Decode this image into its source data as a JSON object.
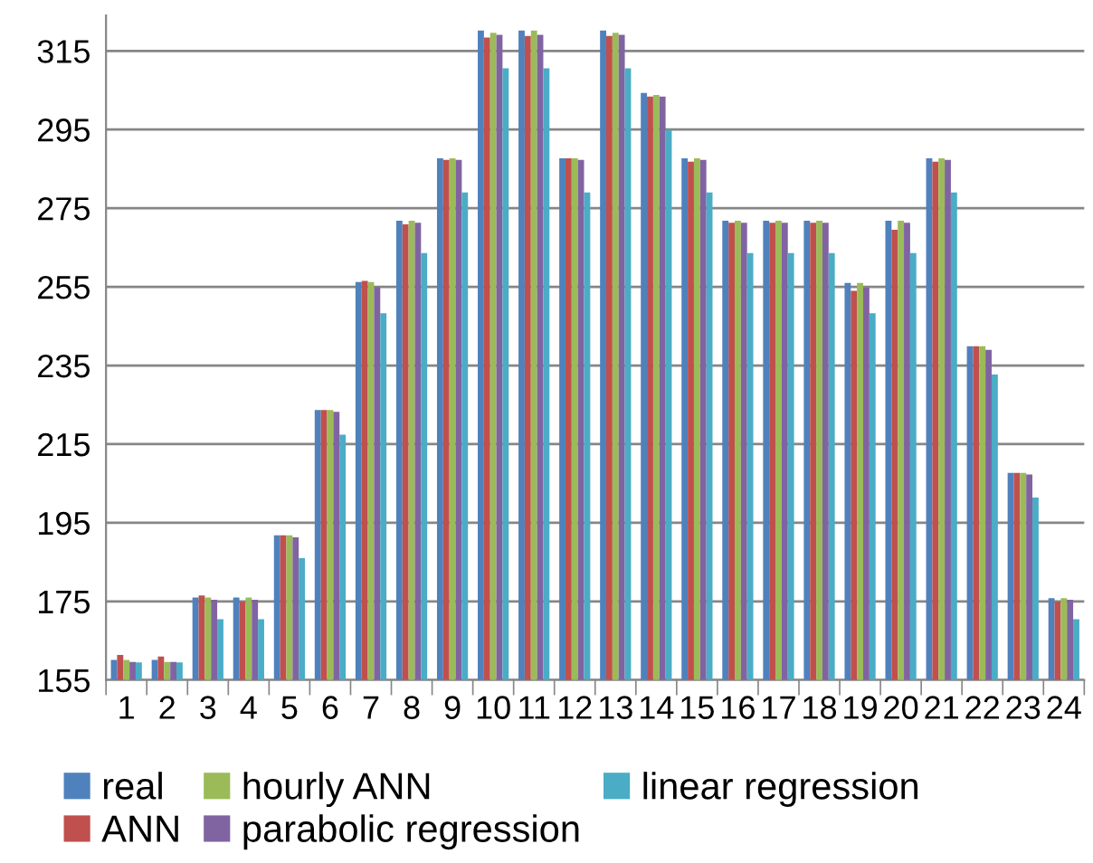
{
  "chart_data": {
    "type": "bar",
    "categories": [
      "1",
      "2",
      "3",
      "4",
      "5",
      "6",
      "7",
      "8",
      "9",
      "10",
      "11",
      "12",
      "13",
      "14",
      "15",
      "16",
      "17",
      "18",
      "19",
      "20",
      "21",
      "22",
      "23",
      "24"
    ],
    "series": [
      {
        "name": "real",
        "color": "#4f81bd",
        "values": [
          160.1,
          160.1,
          176,
          176,
          191.8,
          223.7,
          256.2,
          271.8,
          287.7,
          320.2,
          320.2,
          287.7,
          320.2,
          304.3,
          287.7,
          271.8,
          271.8,
          271.8,
          256,
          271.8,
          287.7,
          239.9,
          207.7,
          175.8
        ]
      },
      {
        "name": "ANN",
        "color": "#c0504d",
        "values": [
          161.4,
          161,
          176.5,
          174.9,
          191.8,
          223.7,
          256.5,
          270.9,
          287.3,
          318.4,
          318.8,
          287.7,
          318.8,
          303.4,
          286.8,
          271.3,
          271.3,
          271.3,
          254,
          269.5,
          286.8,
          239.9,
          207.7,
          174.9
        ]
      },
      {
        "name": "hourly ANN",
        "color": "#9bbb59",
        "values": [
          160.1,
          159.6,
          176,
          176,
          191.8,
          223.7,
          256.2,
          271.8,
          287.7,
          319.6,
          320.2,
          287.7,
          319.6,
          303.8,
          287.7,
          271.8,
          271.8,
          271.8,
          256,
          271.8,
          287.7,
          239.9,
          207.7,
          175.8
        ]
      },
      {
        "name": "parabolic regression",
        "color": "#8064a2",
        "values": [
          159.6,
          159.6,
          175.4,
          175.4,
          191.3,
          223.2,
          254.9,
          271.3,
          287.3,
          319.1,
          319.1,
          287.3,
          319.1,
          303.4,
          287.3,
          271.3,
          271.3,
          271.3,
          254.8,
          271.3,
          287.3,
          239,
          207.3,
          175.4
        ]
      },
      {
        "name": "linear regression",
        "color": "#4bacc6",
        "values": [
          159.5,
          159.5,
          170.5,
          170.5,
          186,
          217.4,
          248.3,
          263.6,
          279,
          310.6,
          310.6,
          279,
          310.6,
          294.9,
          279,
          263.6,
          263.6,
          263.6,
          248.3,
          263.6,
          279,
          232.7,
          201.4,
          170.5
        ]
      }
    ],
    "ylim": [
      155,
      324
    ],
    "yticks": [
      155,
      175,
      195,
      215,
      235,
      255,
      275,
      295,
      315
    ],
    "grid": "y",
    "legend": "bottom"
  }
}
